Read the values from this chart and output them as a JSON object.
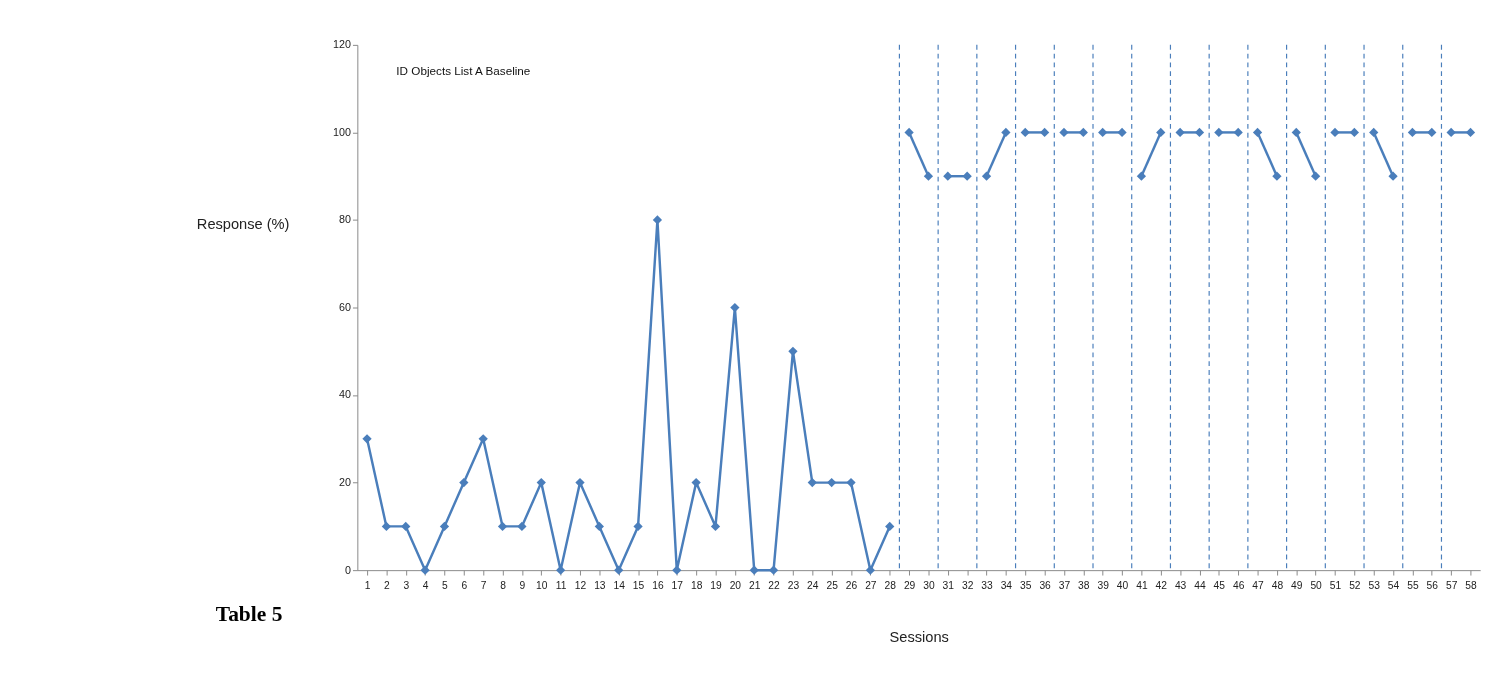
{
  "chart_data": {
    "type": "line",
    "title": "ID Objects List A Baseline",
    "xlabel": "Sessions",
    "ylabel": "Response (%)",
    "annotations": [
      "Table 5"
    ],
    "xlim": [
      0.5,
      58.5
    ],
    "xticks": [
      1,
      2,
      3,
      4,
      5,
      6,
      7,
      8,
      9,
      10,
      11,
      12,
      13,
      14,
      15,
      16,
      17,
      18,
      19,
      20,
      21,
      22,
      23,
      24,
      25,
      26,
      27,
      28,
      29,
      30,
      31,
      32,
      33,
      34,
      35,
      36,
      37,
      38,
      39,
      40,
      41,
      42,
      43,
      44,
      45,
      46,
      47,
      48,
      49,
      50,
      51,
      52,
      53,
      54,
      55,
      56,
      57,
      58
    ],
    "ylim": [
      0,
      120
    ],
    "yticks": [
      0,
      20,
      40,
      60,
      80,
      100,
      120
    ],
    "marker": "diamond",
    "line_style": "solid",
    "series": [
      {
        "color": "#4a7ebb",
        "x": [
          1,
          2,
          3,
          4,
          5,
          6,
          7,
          8,
          9,
          10,
          11,
          12,
          13,
          14,
          15,
          16,
          17,
          18,
          19,
          20,
          21,
          22,
          23,
          24,
          25,
          26,
          27,
          28
        ],
        "values": [
          30,
          10,
          10,
          0,
          10,
          20,
          30,
          10,
          10,
          20,
          0,
          20,
          10,
          0,
          10,
          80,
          0,
          20,
          10,
          60,
          0,
          0,
          50,
          20,
          20,
          20,
          0,
          10
        ]
      },
      {
        "color": "#4a7ebb",
        "x": [
          29,
          30
        ],
        "values": [
          100,
          90
        ]
      },
      {
        "color": "#4a7ebb",
        "x": [
          31,
          32
        ],
        "values": [
          90,
          90
        ]
      },
      {
        "color": "#4a7ebb",
        "x": [
          33,
          34
        ],
        "values": [
          90,
          100
        ]
      },
      {
        "color": "#4a7ebb",
        "x": [
          35,
          36
        ],
        "values": [
          100,
          100
        ]
      },
      {
        "color": "#4a7ebb",
        "x": [
          37,
          38
        ],
        "values": [
          100,
          100
        ]
      },
      {
        "color": "#4a7ebb",
        "x": [
          39,
          40
        ],
        "values": [
          100,
          100
        ]
      },
      {
        "color": "#4a7ebb",
        "x": [
          41,
          42
        ],
        "values": [
          90,
          100
        ]
      },
      {
        "color": "#4a7ebb",
        "x": [
          43,
          44
        ],
        "values": [
          100,
          100
        ]
      },
      {
        "color": "#4a7ebb",
        "x": [
          45,
          46
        ],
        "values": [
          100,
          100
        ]
      },
      {
        "color": "#4a7ebb",
        "x": [
          47,
          48
        ],
        "values": [
          100,
          90
        ]
      },
      {
        "color": "#4a7ebb",
        "x": [
          49,
          50
        ],
        "values": [
          100,
          90
        ]
      },
      {
        "color": "#4a7ebb",
        "x": [
          51,
          52
        ],
        "values": [
          100,
          100
        ]
      },
      {
        "color": "#4a7ebb",
        "x": [
          53,
          54
        ],
        "values": [
          100,
          90
        ]
      },
      {
        "color": "#4a7ebb",
        "x": [
          55,
          56
        ],
        "values": [
          100,
          100
        ]
      },
      {
        "color": "#4a7ebb",
        "x": [
          57,
          58
        ],
        "values": [
          100,
          100
        ]
      }
    ],
    "ref_lines": [
      {
        "axis": "x",
        "value": 28.5,
        "color": "#4a7ebb",
        "line_style": "dashed"
      },
      {
        "axis": "x",
        "value": 30.5,
        "color": "#4a7ebb",
        "line_style": "dashed"
      },
      {
        "axis": "x",
        "value": 32.5,
        "color": "#4a7ebb",
        "line_style": "dashed"
      },
      {
        "axis": "x",
        "value": 34.5,
        "color": "#4a7ebb",
        "line_style": "dashed"
      },
      {
        "axis": "x",
        "value": 36.5,
        "color": "#4a7ebb",
        "line_style": "dashed"
      },
      {
        "axis": "x",
        "value": 38.5,
        "color": "#4a7ebb",
        "line_style": "dashed"
      },
      {
        "axis": "x",
        "value": 40.5,
        "color": "#4a7ebb",
        "line_style": "dashed"
      },
      {
        "axis": "x",
        "value": 42.5,
        "color": "#4a7ebb",
        "line_style": "dashed"
      },
      {
        "axis": "x",
        "value": 44.5,
        "color": "#4a7ebb",
        "line_style": "dashed"
      },
      {
        "axis": "x",
        "value": 46.5,
        "color": "#4a7ebb",
        "line_style": "dashed"
      },
      {
        "axis": "x",
        "value": 48.5,
        "color": "#4a7ebb",
        "line_style": "dashed"
      },
      {
        "axis": "x",
        "value": 50.5,
        "color": "#4a7ebb",
        "line_style": "dashed"
      },
      {
        "axis": "x",
        "value": 52.5,
        "color": "#4a7ebb",
        "line_style": "dashed"
      },
      {
        "axis": "x",
        "value": 54.5,
        "color": "#4a7ebb",
        "line_style": "dashed"
      },
      {
        "axis": "x",
        "value": 56.5,
        "color": "#4a7ebb",
        "line_style": "dashed"
      }
    ]
  }
}
